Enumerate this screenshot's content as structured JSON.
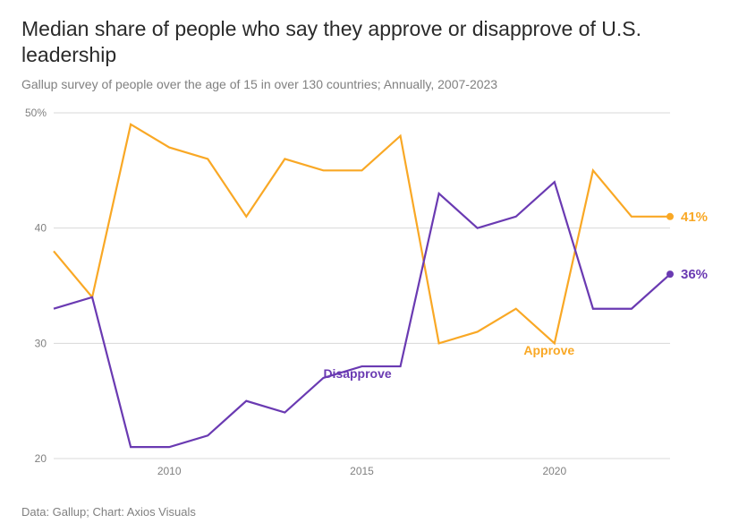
{
  "title": "Median share of people who say they approve or disapprove of U.S. leadership",
  "subtitle": "Gallup survey of people over the age of 15 in over 130 countries; Annually, 2007-2023",
  "source": "Data: Gallup; Chart: Axios Visuals",
  "chart": {
    "type": "line",
    "background_color": "#ffffff",
    "grid_color": "#d8d8d8",
    "axis_label_color": "#808080",
    "axis_label_fontsize": 12,
    "xlim": [
      2007,
      2023
    ],
    "ylim": [
      20,
      50
    ],
    "ytick_step": 10,
    "yticks": [
      20,
      30,
      40,
      50
    ],
    "ytick_labels": [
      "20",
      "30",
      "40",
      "50%"
    ],
    "xticks": [
      2010,
      2015,
      2020
    ],
    "xtick_labels": [
      "2010",
      "2015",
      "2020"
    ],
    "line_width": 2.2,
    "end_marker_radius": 4,
    "series": [
      {
        "name": "Approve",
        "color": "#f9a825",
        "inline_label": "Approve",
        "inline_label_x": 2019.2,
        "inline_label_y": 29.0,
        "end_label": "41%",
        "data": [
          {
            "x": 2007,
            "y": 38
          },
          {
            "x": 2008,
            "y": 34
          },
          {
            "x": 2009,
            "y": 49
          },
          {
            "x": 2010,
            "y": 47
          },
          {
            "x": 2011,
            "y": 46
          },
          {
            "x": 2012,
            "y": 41
          },
          {
            "x": 2013,
            "y": 46
          },
          {
            "x": 2014,
            "y": 45
          },
          {
            "x": 2015,
            "y": 45
          },
          {
            "x": 2016,
            "y": 48
          },
          {
            "x": 2017,
            "y": 30
          },
          {
            "x": 2018,
            "y": 31
          },
          {
            "x": 2019,
            "y": 33
          },
          {
            "x": 2020,
            "y": 30
          },
          {
            "x": 2021,
            "y": 45
          },
          {
            "x": 2022,
            "y": 41
          },
          {
            "x": 2023,
            "y": 41
          }
        ]
      },
      {
        "name": "Disapprove",
        "color": "#6a3ab2",
        "inline_label": "Disapprove",
        "inline_label_x": 2014.0,
        "inline_label_y": 27.0,
        "end_label": "36%",
        "data": [
          {
            "x": 2007,
            "y": 33
          },
          {
            "x": 2008,
            "y": 34
          },
          {
            "x": 2009,
            "y": 21
          },
          {
            "x": 2010,
            "y": 21
          },
          {
            "x": 2011,
            "y": 22
          },
          {
            "x": 2012,
            "y": 25
          },
          {
            "x": 2013,
            "y": 24
          },
          {
            "x": 2014,
            "y": 27
          },
          {
            "x": 2015,
            "y": 28
          },
          {
            "x": 2016,
            "y": 28
          },
          {
            "x": 2017,
            "y": 43
          },
          {
            "x": 2018,
            "y": 40
          },
          {
            "x": 2019,
            "y": 41
          },
          {
            "x": 2020,
            "y": 44
          },
          {
            "x": 2021,
            "y": 33
          },
          {
            "x": 2022,
            "y": 33
          },
          {
            "x": 2023,
            "y": 36
          }
        ]
      }
    ],
    "inline_label_fontsize": 14,
    "inline_label_fontweight": 700,
    "end_label_fontsize": 15,
    "end_label_fontweight": 700
  }
}
